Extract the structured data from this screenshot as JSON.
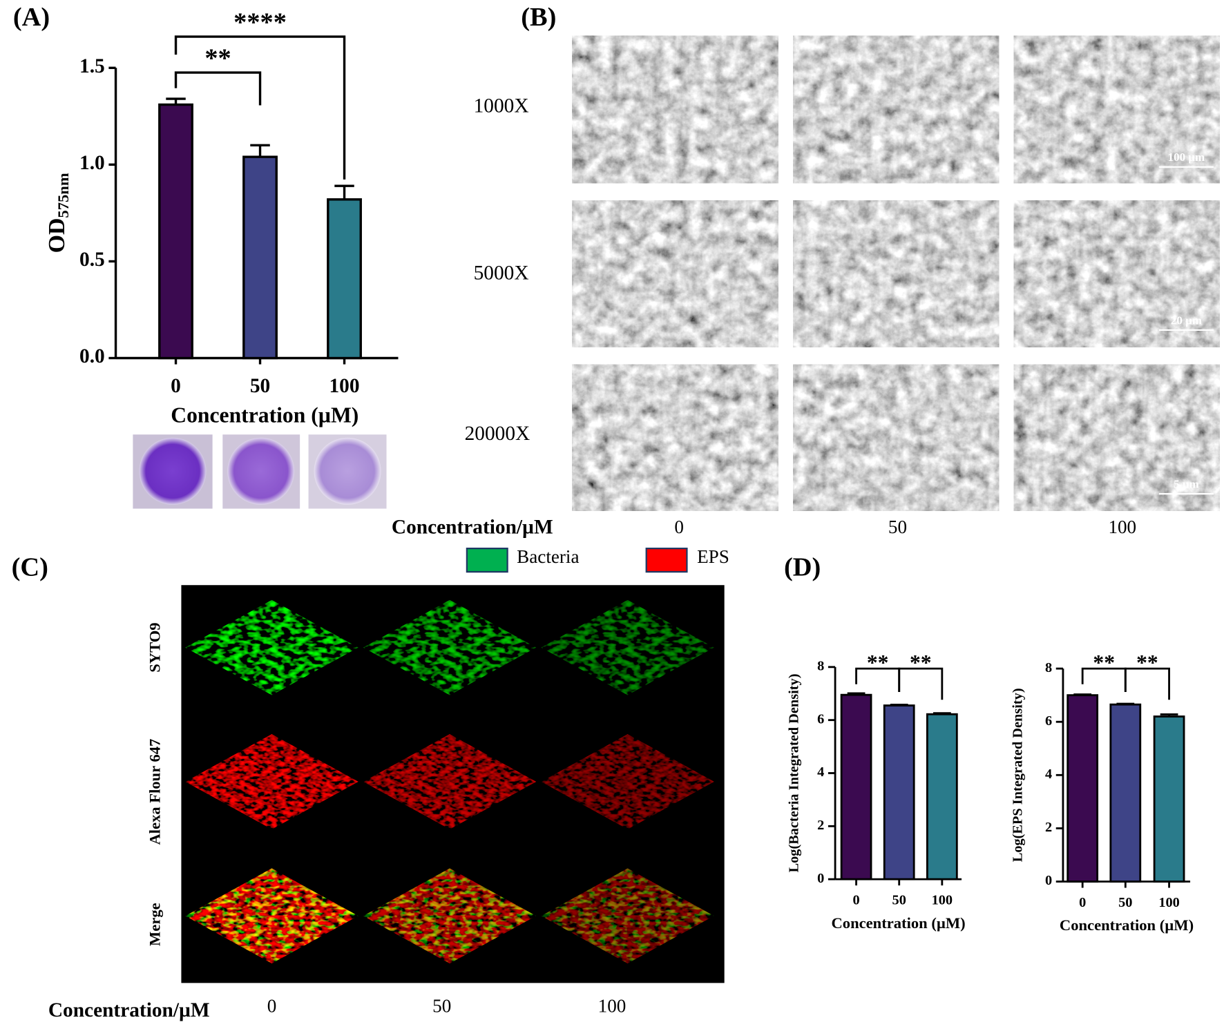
{
  "chart_data": [
    {
      "type": "bar",
      "y_label": "OD",
      "y_label_sub": "575nm",
      "x_label": "Concentration (µM)",
      "categories": [
        "0",
        "50",
        "100"
      ],
      "values": [
        1.31,
        1.04,
        0.82
      ],
      "errors": [
        0.03,
        0.06,
        0.07
      ],
      "colors": [
        "#3b0a50",
        "#3e4487",
        "#2a7b8b"
      ],
      "ylim": [
        0,
        1.5
      ],
      "yticks": [
        {
          "value": 0,
          "label": "0.0"
        },
        {
          "value": 0.5,
          "label": "0.5"
        },
        {
          "value": 1,
          "label": "1.0"
        },
        {
          "value": 1.5,
          "label": "1.5"
        }
      ],
      "significance": [
        {
          "pair": [
            "0",
            "50"
          ],
          "label": "**"
        },
        {
          "pair": [
            "0",
            "100"
          ],
          "label": "****"
        }
      ]
    },
    {
      "type": "bar",
      "y_label": "Log(Bacteria Integrated Density)",
      "x_label": "Concentration (µM)",
      "categories": [
        "0",
        "50",
        "100"
      ],
      "values": [
        6.95,
        6.55,
        6.22
      ],
      "errors": [
        0.06,
        0.03,
        0.04
      ],
      "colors": [
        "#3b0a50",
        "#3e4487",
        "#2a7b8b"
      ],
      "ylim": [
        0,
        8
      ],
      "yticks": [
        0,
        2,
        4,
        6,
        8
      ],
      "significance": [
        {
          "pair": [
            "0",
            "50"
          ],
          "label": "**"
        },
        {
          "pair": [
            "50",
            "100"
          ],
          "label": "**"
        }
      ]
    },
    {
      "type": "bar",
      "y_label": "Log(EPS Integrated Density)",
      "x_label": "Concentration (µM)",
      "categories": [
        "0",
        "50",
        "100"
      ],
      "values": [
        7.0,
        6.65,
        6.2
      ],
      "errors": [
        0.03,
        0.03,
        0.08
      ],
      "colors": [
        "#3b0a50",
        "#3e4487",
        "#2a7b8b"
      ],
      "ylim": [
        0,
        8
      ],
      "yticks": [
        0,
        2,
        4,
        6,
        8
      ],
      "significance": [
        {
          "pair": [
            "0",
            "50"
          ],
          "label": "**"
        },
        {
          "pair": [
            "50",
            "100"
          ],
          "label": "**"
        }
      ]
    }
  ],
  "panel_labels": [
    "(A)",
    "(B)",
    "(C)",
    "(D)"
  ],
  "sem": {
    "magnifications": [
      "1000X",
      "5000X",
      "20000X"
    ],
    "scale_bars": [
      "100 µm",
      "20 µm",
      "5 µm"
    ],
    "x_label": "Concentration/µM",
    "concentrations": [
      "0",
      "50",
      "100"
    ]
  },
  "confocal": {
    "legend": [
      {
        "name": "Bacteria",
        "color": "#00b050"
      },
      {
        "name": "EPS",
        "color": "#ff0000"
      }
    ],
    "rows": [
      "SYTO9",
      "Alexa Flour 647",
      "Merge"
    ],
    "x_label": "Concentration/µM",
    "concentrations": [
      "0",
      "50",
      "100"
    ]
  }
}
